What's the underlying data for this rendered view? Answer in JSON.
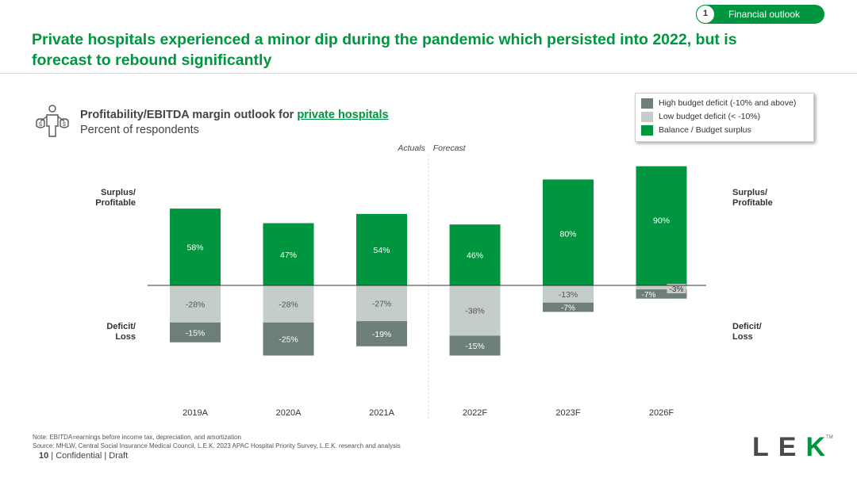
{
  "tag": {
    "number": "1",
    "label": "Financial  outlook"
  },
  "headline": "Private hospitals experienced a minor dip during the pandemic which persisted into 2022, but is forecast to rebound significantly",
  "chart_header": {
    "title_prefix": "Profitability/EBITDA margin outlook for ",
    "title_highlight": "private hospitals",
    "subtitle": "Percent of respondents"
  },
  "side_labels": {
    "surplus_left": [
      "Surplus/",
      "Profitable"
    ],
    "deficit_left": [
      "Deficit/",
      "Loss"
    ],
    "surplus_right": [
      "Surplus/",
      "Profitable"
    ],
    "deficit_right": [
      "Deficit/",
      "Loss"
    ]
  },
  "notes": {
    "note": "Note: EBITDA=earnings  before income tax, depreciation,  and amortization",
    "source": "Source: MHLW,  Central  Social  Insurance Medical  Council, L.E.K.  2023 APAC Hospital  Priority Survey, L.E.K.  research and analysis"
  },
  "footer": {
    "page": "10",
    "text": " | Confidential | Draft"
  },
  "logo": {
    "left": "LE",
    "k": "K",
    "tm": "TM"
  },
  "colors": {
    "surplus": "#00963f",
    "low_deficit": "#c5cdcb",
    "high_deficit": "#6e7f78",
    "accent": "#00963f"
  },
  "chart_data": {
    "type": "bar",
    "stacked": true,
    "title": "Profitability/EBITDA margin outlook for private hospitals",
    "subtitle": "Percent of respondents",
    "categories": [
      "2019A",
      "2020A",
      "2021A",
      "2022F",
      "2023F",
      "2026F"
    ],
    "series": [
      {
        "name": "Balance / Budget surplus",
        "key": "surplus",
        "values": [
          58,
          47,
          54,
          46,
          80,
          90
        ],
        "labels": [
          "58%",
          "47%",
          "54%",
          "46%",
          "80%",
          "90%"
        ]
      },
      {
        "name": "Low budget deficit (< -10%)",
        "key": "low_deficit",
        "values": [
          -28,
          -28,
          -27,
          -38,
          -13,
          -3
        ],
        "labels": [
          "-28%",
          "-28%",
          "-27%",
          "-38%",
          "-13%",
          "-3%"
        ]
      },
      {
        "name": "High budget deficit (-10% and above)",
        "key": "high_deficit",
        "values": [
          -15,
          -25,
          -19,
          -15,
          -7,
          -7
        ],
        "labels": [
          "-15%",
          "-25%",
          "-19%",
          "-15%",
          "-7%",
          "-7%"
        ]
      }
    ],
    "legend_order": [
      "high_deficit",
      "low_deficit",
      "surplus"
    ],
    "annotations": {
      "actuals": "Actuals",
      "forecast": "Forecast"
    },
    "forecast_divider_after_index": 2,
    "ylim": [
      -60,
      100
    ],
    "grid": false,
    "legend_position": "top-right"
  }
}
